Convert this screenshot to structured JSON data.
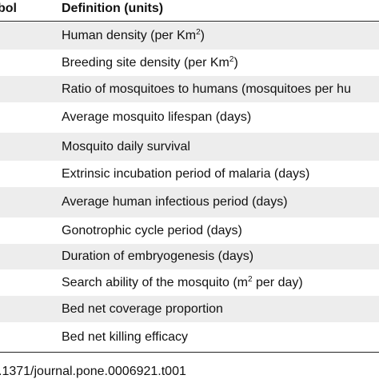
{
  "table": {
    "header": [
      "bol",
      "Definition (units)"
    ],
    "rows": [
      [
        "Human density (per Km",
        "2",
        ")"
      ],
      [
        "Breeding site density (per Km",
        "2",
        ")"
      ],
      [
        "Ratio of mosquitoes to humans (mosquitoes per hu"
      ],
      [
        "Average mosquito lifespan (days)"
      ],
      [
        "Mosquito daily survival"
      ],
      [
        "Extrinsic incubation period of malaria (days)"
      ],
      [
        "Average human infectious period (days)"
      ],
      [
        "Gonotrophic cycle period (days)"
      ],
      [
        "Duration of embryogenesis (days)"
      ],
      [
        "Search ability of the mosquito (m",
        "2",
        " per day)"
      ],
      [
        "Bed net coverage proportion"
      ],
      [
        "Bed net killing efficacy"
      ]
    ]
  },
  "footer": {
    "doi": ".1371/journal.pone.0006921.t001"
  }
}
